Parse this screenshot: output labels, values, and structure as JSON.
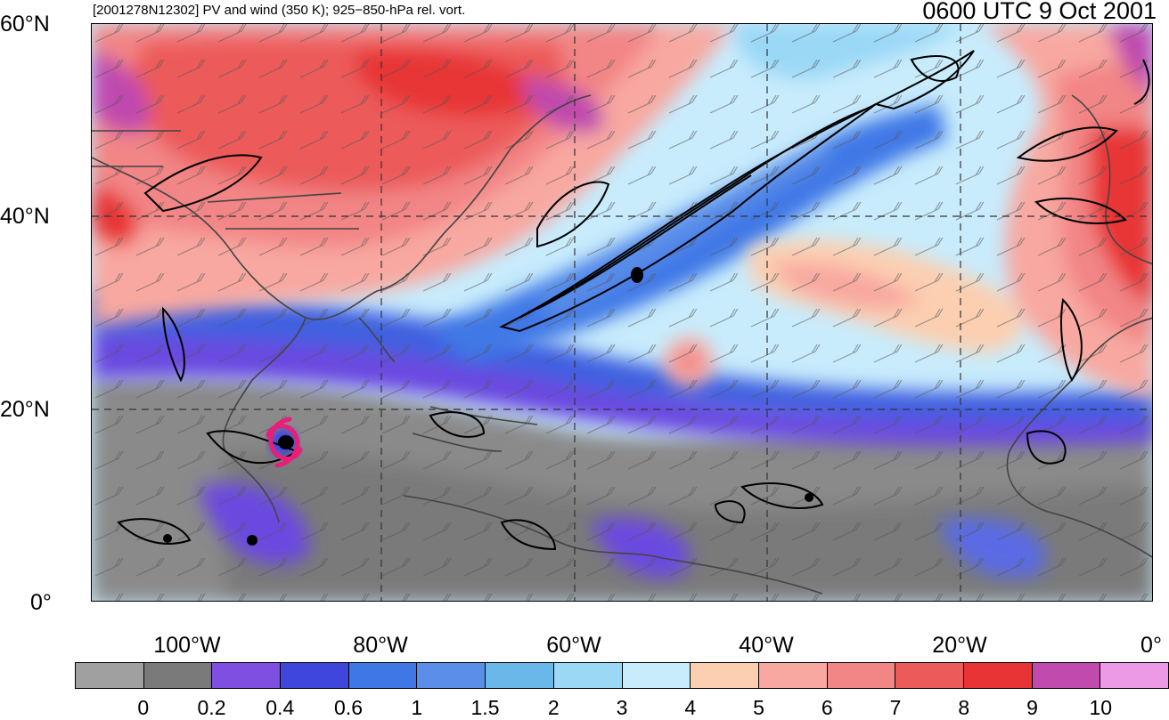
{
  "title_left": "[2001278N12302] PV and wind (350 K); 925−850-hPa rel. vort.",
  "title_right": "0600 UTC 9 Oct 2001",
  "y_axis_labels": [
    "60°N",
    "40°N",
    "20°N",
    "0°"
  ],
  "x_axis_labels": [
    "100°W",
    "80°W",
    "60°W",
    "40°W",
    "20°W",
    "0°"
  ],
  "colorbar": {
    "colors": [
      "#a0a0a0",
      "#7a7a7a",
      "#7e4fe0",
      "#3f46dc",
      "#3f78e6",
      "#5a8ee8",
      "#6ab8ea",
      "#9ad8f6",
      "#c8ecfc",
      "#fccfb0",
      "#f8a8a0",
      "#f28585",
      "#ec5a5a",
      "#e83434",
      "#c04aae",
      "#ec9ae6"
    ],
    "labels": [
      "0",
      "0.2",
      "0.4",
      "0.6",
      "1",
      "1.5",
      "2",
      "3",
      "4",
      "5",
      "6",
      "7",
      "8",
      "9",
      "10"
    ]
  },
  "symbols": {
    "storm_marker": "tropical-cyclone-symbol",
    "storm_color": "#e81e78"
  }
}
